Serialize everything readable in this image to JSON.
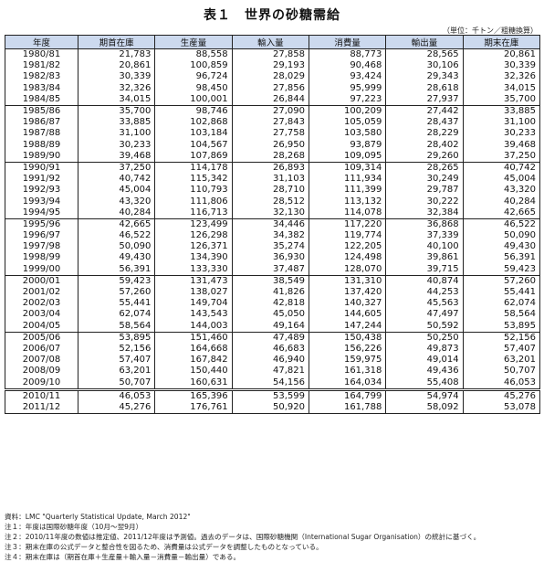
{
  "title": "表１　世界の砂糖需給",
  "unit": "（単位：千トン／粗糖換算）",
  "columns": [
    "年度",
    "期首在庫",
    "生産量",
    "輸入量",
    "消費量",
    "輸出量",
    "期末在庫"
  ],
  "rows": [
    [
      "1980/81",
      "21,783",
      "88,558",
      "27,858",
      "88,773",
      "28,565",
      "20,861"
    ],
    [
      "1981/82",
      "20,861",
      "100,859",
      "29,193",
      "90,468",
      "30,106",
      "30,339"
    ],
    [
      "1982/83",
      "30,339",
      "96,724",
      "28,029",
      "93,424",
      "29,343",
      "32,326"
    ],
    [
      "1983/84",
      "32,326",
      "98,450",
      "27,856",
      "95,999",
      "28,618",
      "34,015"
    ],
    [
      "1984/85",
      "34,015",
      "100,001",
      "26,844",
      "97,223",
      "27,937",
      "35,700"
    ],
    [
      "1985/86",
      "35,700",
      "98,746",
      "27,090",
      "100,209",
      "27,442",
      "33,885"
    ],
    [
      "1986/87",
      "33,885",
      "102,868",
      "27,843",
      "105,059",
      "28,437",
      "31,100"
    ],
    [
      "1987/88",
      "31,100",
      "103,184",
      "27,758",
      "103,580",
      "28,229",
      "30,233"
    ],
    [
      "1988/89",
      "30,233",
      "104,567",
      "26,950",
      "93,879",
      "28,402",
      "39,468"
    ],
    [
      "1989/90",
      "39,468",
      "107,869",
      "28,268",
      "109,095",
      "29,260",
      "37,250"
    ],
    [
      "1990/91",
      "37,250",
      "114,178",
      "26,893",
      "109,314",
      "28,265",
      "40,742"
    ],
    [
      "1991/92",
      "40,742",
      "115,342",
      "31,103",
      "111,934",
      "30,249",
      "45,004"
    ],
    [
      "1992/93",
      "45,004",
      "110,793",
      "28,710",
      "111,399",
      "29,787",
      "43,320"
    ],
    [
      "1993/94",
      "43,320",
      "111,806",
      "28,512",
      "113,132",
      "30,222",
      "40,284"
    ],
    [
      "1994/95",
      "40,284",
      "116,713",
      "32,130",
      "114,078",
      "32,384",
      "42,665"
    ],
    [
      "1995/96",
      "42,665",
      "123,499",
      "34,446",
      "117,220",
      "36,868",
      "46,522"
    ],
    [
      "1996/97",
      "46,522",
      "126,298",
      "34,382",
      "119,774",
      "37,339",
      "50,090"
    ],
    [
      "1997/98",
      "50,090",
      "126,371",
      "35,274",
      "122,205",
      "40,100",
      "49,430"
    ],
    [
      "1998/99",
      "49,430",
      "134,390",
      "36,930",
      "124,498",
      "39,861",
      "56,391"
    ],
    [
      "1999/00",
      "56,391",
      "133,330",
      "37,487",
      "128,070",
      "39,715",
      "59,423"
    ],
    [
      "2000/01",
      "59,423",
      "131,473",
      "38,549",
      "131,310",
      "40,874",
      "57,260"
    ],
    [
      "2001/02",
      "57,260",
      "138,027",
      "41,826",
      "137,420",
      "44,253",
      "55,441"
    ],
    [
      "2002/03",
      "55,441",
      "149,704",
      "42,818",
      "140,327",
      "45,563",
      "62,074"
    ],
    [
      "2003/04",
      "62,074",
      "143,543",
      "45,050",
      "144,605",
      "47,497",
      "58,564"
    ],
    [
      "2004/05",
      "58,564",
      "144,003",
      "49,164",
      "147,244",
      "50,592",
      "53,895"
    ],
    [
      "2005/06",
      "53,895",
      "151,460",
      "47,489",
      "150,438",
      "50,250",
      "52,156"
    ],
    [
      "2006/07",
      "52,156",
      "164,668",
      "46,683",
      "156,226",
      "49,873",
      "57,407"
    ],
    [
      "2007/08",
      "57,407",
      "167,842",
      "46,940",
      "159,975",
      "49,014",
      "63,201"
    ],
    [
      "2008/09",
      "63,201",
      "150,440",
      "47,821",
      "161,318",
      "49,436",
      "50,707"
    ],
    [
      "2009/10",
      "50,707",
      "160,631",
      "54,156",
      "164,034",
      "55,408",
      "46,053"
    ],
    [
      "2010/11",
      "46,053",
      "165,396",
      "53,599",
      "164,799",
      "54,974",
      "45,276"
    ],
    [
      "2011/12",
      "45,276",
      "176,761",
      "50,920",
      "161,788",
      "58,092",
      "53,078"
    ]
  ],
  "notes": [
    "資料：LMC \"Quarterly Statistical Update, March 2012\"",
    "注１：年度は国際砂糖年度（10月～翌9月）",
    "注２：2010/11年度の数値は推定値、2011/12年度は予測値。過去のデータは、国際砂糖機関（International Sugar Organisation）の統計に基づく。",
    "注３：期末在庫の公式データと整合性を図るため、消費量は公式データを調整したものとなっている。",
    "注４：期末在庫は（期首在庫＋生産量＋輸入量－消費量－輸出量）である。"
  ]
}
